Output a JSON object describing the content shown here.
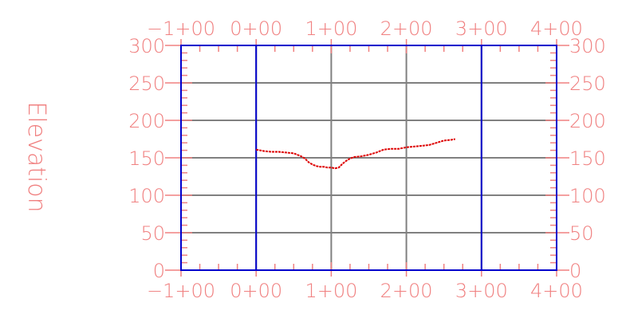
{
  "chart_data": {
    "type": "line",
    "title": "",
    "ylabel": "Elevation",
    "xlabel": "",
    "xlim": [
      -100,
      400
    ],
    "ylim": [
      0,
      300
    ],
    "x_ticks": [
      {
        "value": -100,
        "label": "−1+00"
      },
      {
        "value": 0,
        "label": "0+00"
      },
      {
        "value": 100,
        "label": "1+00"
      },
      {
        "value": 200,
        "label": "2+00"
      },
      {
        "value": 300,
        "label": "3+00"
      },
      {
        "value": 400,
        "label": "4+00"
      }
    ],
    "y_ticks": [
      0,
      50,
      100,
      150,
      200,
      250,
      300
    ],
    "grid": true,
    "colors": {
      "label": "#f08080",
      "frame": "#0000cc",
      "grid": "#808080",
      "tick": "#f08080",
      "profile": "#dd0000"
    },
    "series": [
      {
        "x": [
          0,
          10,
          20,
          30,
          40,
          50,
          60,
          65,
          70,
          75,
          80,
          85,
          90,
          95,
          100,
          105,
          110,
          115,
          120,
          125,
          130,
          140,
          150,
          160,
          170,
          180,
          190,
          200,
          210,
          220,
          230,
          240,
          250,
          260,
          265
        ],
        "values": [
          161,
          159,
          158,
          158,
          157,
          156,
          152,
          149,
          144,
          141,
          139,
          138,
          138,
          137,
          137,
          136,
          137,
          142,
          146,
          149,
          151,
          152,
          154,
          157,
          161,
          162,
          162,
          164,
          165,
          166,
          167,
          170,
          173,
          174,
          175
        ]
      }
    ]
  }
}
